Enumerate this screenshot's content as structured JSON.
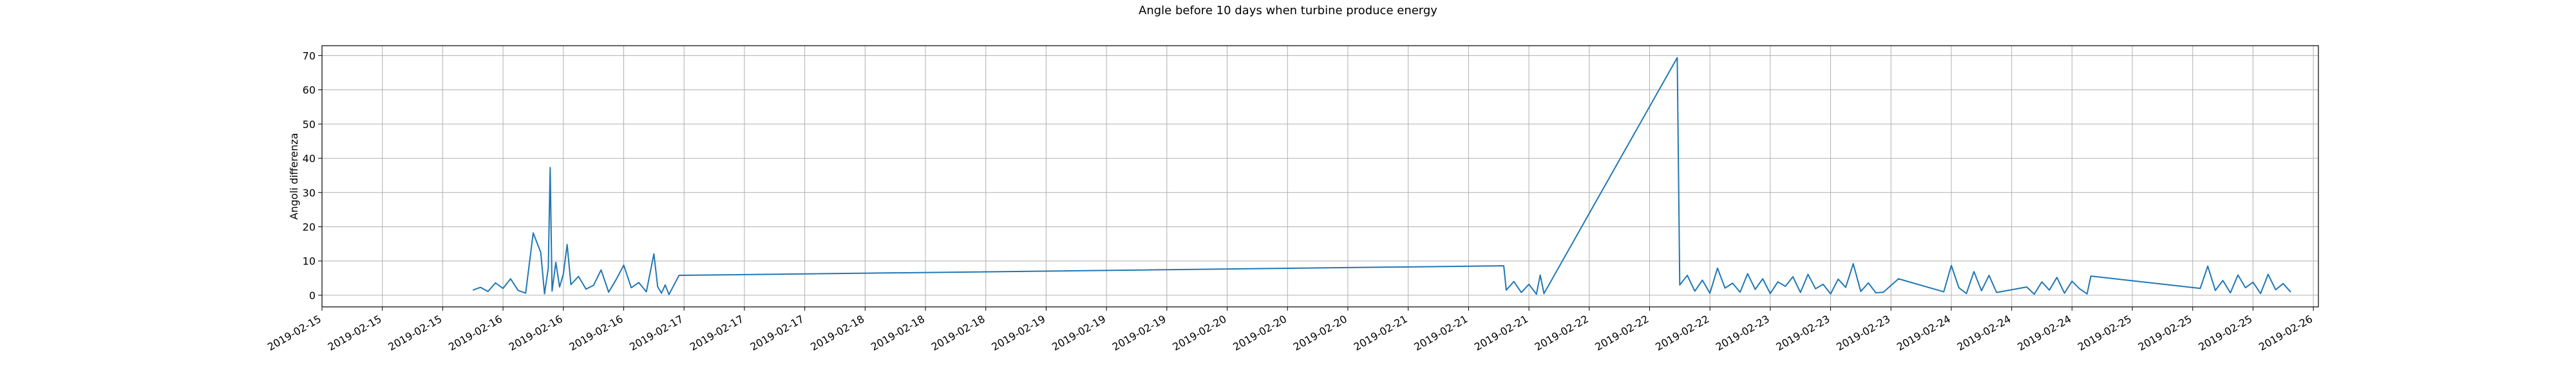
{
  "chart_data": {
    "type": "line",
    "title": "Angle before 10 days when turbine produce energy",
    "y_label": "Angoli differenza",
    "color": "#1f77b4",
    "grid": true,
    "x": [
      "2019-02-15T20:00",
      "2019-02-15T21:00",
      "2019-02-15T22:00",
      "2019-02-15T23:00",
      "2019-02-16T00:00",
      "2019-02-16T01:00",
      "2019-02-16T02:00",
      "2019-02-16T03:00",
      "2019-02-16T04:00",
      "2019-02-16T05:00",
      "2019-02-16T05:30",
      "2019-02-16T06:00",
      "2019-02-16T06:15",
      "2019-02-16T06:30",
      "2019-02-16T07:00",
      "2019-02-16T07:30",
      "2019-02-16T08:00",
      "2019-02-16T08:30",
      "2019-02-16T09:00",
      "2019-02-16T10:00",
      "2019-02-16T11:00",
      "2019-02-16T12:00",
      "2019-02-16T13:00",
      "2019-02-16T14:00",
      "2019-02-16T15:00",
      "2019-02-16T16:00",
      "2019-02-16T17:00",
      "2019-02-16T18:00",
      "2019-02-16T19:00",
      "2019-02-16T20:00",
      "2019-02-16T20:30",
      "2019-02-16T21:00",
      "2019-02-16T21:30",
      "2019-02-16T22:00",
      "2019-02-16T23:20",
      "2019-02-21T12:40",
      "2019-02-21T13:00",
      "2019-02-21T14:00",
      "2019-02-21T15:00",
      "2019-02-21T16:00",
      "2019-02-21T17:00",
      "2019-02-21T17:30",
      "2019-02-21T18:00",
      "2019-02-22T11:40",
      "2019-02-22T12:00",
      "2019-02-22T13:00",
      "2019-02-22T14:00",
      "2019-02-22T15:00",
      "2019-02-22T16:00",
      "2019-02-22T17:00",
      "2019-02-22T18:00",
      "2019-02-22T19:00",
      "2019-02-22T20:00",
      "2019-02-22T21:00",
      "2019-02-22T22:00",
      "2019-02-22T23:00",
      "2019-02-23T00:00",
      "2019-02-23T01:00",
      "2019-02-23T02:00",
      "2019-02-23T03:00",
      "2019-02-23T04:00",
      "2019-02-23T05:00",
      "2019-02-23T06:00",
      "2019-02-23T07:00",
      "2019-02-23T08:00",
      "2019-02-23T09:00",
      "2019-02-23T10:00",
      "2019-02-23T11:00",
      "2019-02-23T12:00",
      "2019-02-23T13:00",
      "2019-02-23T14:00",
      "2019-02-23T15:00",
      "2019-02-23T17:00",
      "2019-02-23T23:00",
      "2019-02-24T00:00",
      "2019-02-24T01:00",
      "2019-02-24T02:00",
      "2019-02-24T03:00",
      "2019-02-24T04:00",
      "2019-02-24T05:00",
      "2019-02-24T06:00",
      "2019-02-24T10:00",
      "2019-02-24T11:00",
      "2019-02-24T12:00",
      "2019-02-24T13:00",
      "2019-02-24T14:00",
      "2019-02-24T15:00",
      "2019-02-24T16:00",
      "2019-02-24T17:00",
      "2019-02-24T18:00",
      "2019-02-24T18:30",
      "2019-02-25T09:00",
      "2019-02-25T10:00",
      "2019-02-25T11:00",
      "2019-02-25T12:00",
      "2019-02-25T13:00",
      "2019-02-25T14:00",
      "2019-02-25T15:00",
      "2019-02-25T16:00",
      "2019-02-25T17:00",
      "2019-02-25T18:00",
      "2019-02-25T19:00",
      "2019-02-25T20:00",
      "2019-02-25T21:00"
    ],
    "values": [
      1.5,
      2.3,
      1.1,
      3.6,
      2.0,
      4.8,
      1.4,
      0.6,
      18.2,
      12.5,
      0.4,
      8.0,
      37.3,
      1.2,
      9.6,
      2.4,
      6.2,
      14.8,
      3.1,
      5.5,
      1.8,
      2.9,
      7.4,
      0.9,
      4.6,
      8.8,
      2.2,
      3.7,
      1.0,
      12.1,
      2.5,
      0.6,
      3.0,
      0.2,
      5.8,
      8.6,
      1.5,
      4.0,
      0.8,
      3.2,
      0.3,
      5.9,
      0.5,
      69.4,
      3.0,
      5.8,
      1.2,
      4.4,
      0.6,
      7.9,
      2.1,
      3.5,
      0.9,
      6.3,
      1.7,
      4.8,
      0.5,
      3.9,
      2.6,
      5.4,
      0.8,
      6.1,
      1.9,
      3.2,
      0.4,
      4.7,
      2.3,
      9.2,
      1.1,
      3.6,
      0.7,
      0.9,
      4.8,
      1.0,
      8.7,
      2.2,
      0.5,
      6.9,
      1.3,
      5.8,
      0.8,
      2.4,
      0.3,
      3.9,
      1.5,
      5.2,
      0.6,
      4.1,
      1.9,
      0.4,
      5.6,
      2.0,
      8.5,
      1.4,
      4.3,
      0.7,
      5.9,
      2.2,
      3.8,
      0.5,
      6.1,
      1.6,
      3.4,
      0.9
    ],
    "xlim": [
      "2019-02-15T00:00",
      "2019-02-26T00:40"
    ],
    "xticks": [
      {
        "value": "2019-02-15T00:00",
        "label": "2019-02-15"
      },
      {
        "value": "2019-02-15T08:00",
        "label": "2019-02-15"
      },
      {
        "value": "2019-02-15T16:00",
        "label": "2019-02-15"
      },
      {
        "value": "2019-02-16T00:00",
        "label": "2019-02-16"
      },
      {
        "value": "2019-02-16T08:00",
        "label": "2019-02-16"
      },
      {
        "value": "2019-02-16T16:00",
        "label": "2019-02-16"
      },
      {
        "value": "2019-02-17T00:00",
        "label": "2019-02-17"
      },
      {
        "value": "2019-02-17T08:00",
        "label": "2019-02-17"
      },
      {
        "value": "2019-02-17T16:00",
        "label": "2019-02-17"
      },
      {
        "value": "2019-02-18T00:00",
        "label": "2019-02-18"
      },
      {
        "value": "2019-02-18T08:00",
        "label": "2019-02-18"
      },
      {
        "value": "2019-02-18T16:00",
        "label": "2019-02-18"
      },
      {
        "value": "2019-02-19T00:00",
        "label": "2019-02-19"
      },
      {
        "value": "2019-02-19T08:00",
        "label": "2019-02-19"
      },
      {
        "value": "2019-02-19T16:00",
        "label": "2019-02-19"
      },
      {
        "value": "2019-02-20T00:00",
        "label": "2019-02-20"
      },
      {
        "value": "2019-02-20T08:00",
        "label": "2019-02-20"
      },
      {
        "value": "2019-02-20T16:00",
        "label": "2019-02-20"
      },
      {
        "value": "2019-02-21T00:00",
        "label": "2019-02-21"
      },
      {
        "value": "2019-02-21T08:00",
        "label": "2019-02-21"
      },
      {
        "value": "2019-02-21T16:00",
        "label": "2019-02-21"
      },
      {
        "value": "2019-02-22T00:00",
        "label": "2019-02-22"
      },
      {
        "value": "2019-02-22T08:00",
        "label": "2019-02-22"
      },
      {
        "value": "2019-02-22T16:00",
        "label": "2019-02-22"
      },
      {
        "value": "2019-02-23T00:00",
        "label": "2019-02-23"
      },
      {
        "value": "2019-02-23T08:00",
        "label": "2019-02-23"
      },
      {
        "value": "2019-02-23T16:00",
        "label": "2019-02-23"
      },
      {
        "value": "2019-02-24T00:00",
        "label": "2019-02-24"
      },
      {
        "value": "2019-02-24T08:00",
        "label": "2019-02-24"
      },
      {
        "value": "2019-02-24T16:00",
        "label": "2019-02-24"
      },
      {
        "value": "2019-02-25T00:00",
        "label": "2019-02-25"
      },
      {
        "value": "2019-02-25T08:00",
        "label": "2019-02-25"
      },
      {
        "value": "2019-02-25T16:00",
        "label": "2019-02-25"
      },
      {
        "value": "2019-02-26T00:00",
        "label": "2019-02-26"
      }
    ],
    "ylim": [
      -3.4,
      72.9
    ],
    "yticks": [
      0,
      10,
      20,
      30,
      40,
      50,
      60,
      70
    ]
  }
}
